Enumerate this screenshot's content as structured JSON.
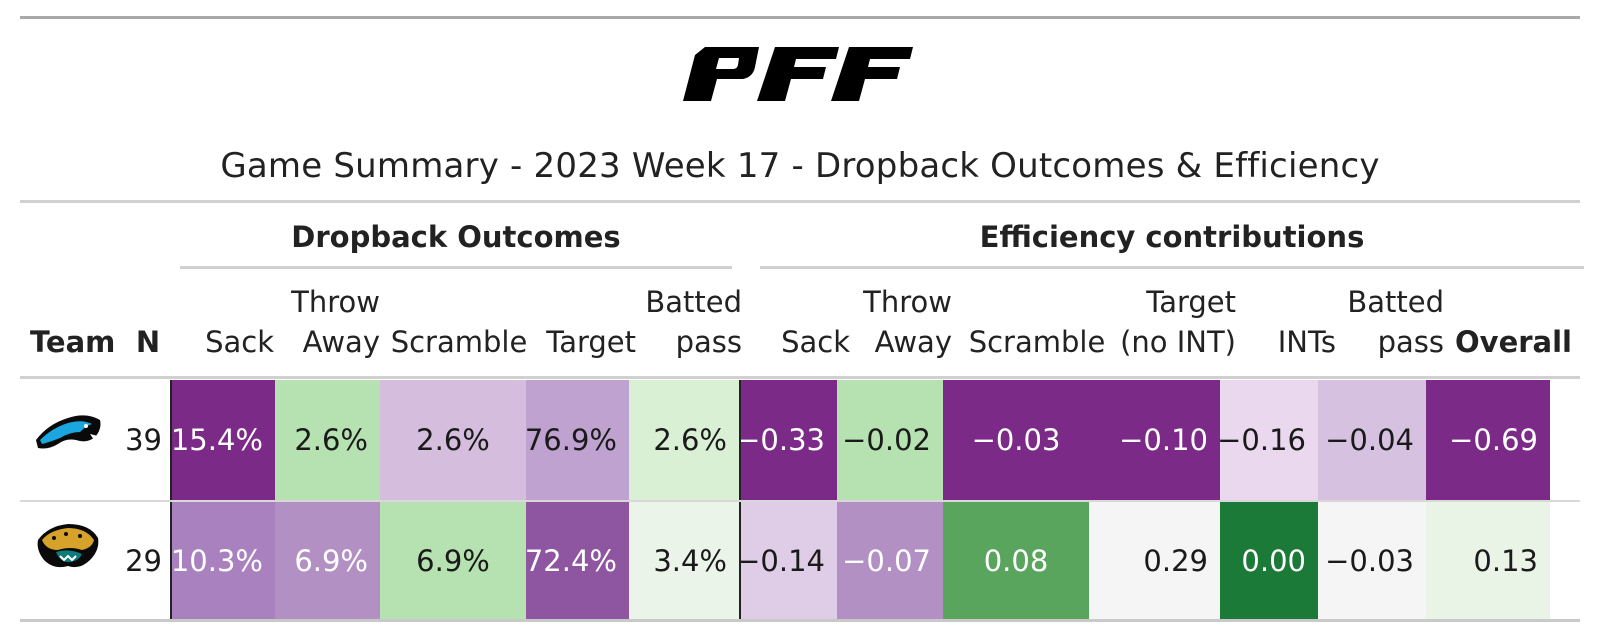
{
  "title": "Game Summary - 2023 Week 17 - Dropback Outcomes & Efficiency",
  "logo_text": "PFF",
  "spanners": {
    "outcomes": "Dropback Outcomes",
    "efficiency": "Efficiency contributions"
  },
  "columns": {
    "team": "Team",
    "n": "N",
    "outcomes": [
      {
        "l1": "",
        "l2": "Sack"
      },
      {
        "l1": "Throw",
        "l2": "Away"
      },
      {
        "l1": "",
        "l2": "Scramble"
      },
      {
        "l1": "",
        "l2": "Target"
      },
      {
        "l1": "Batted",
        "l2": "pass"
      }
    ],
    "efficiency": [
      {
        "l1": "",
        "l2": "Sack"
      },
      {
        "l1": "Throw",
        "l2": "Away"
      },
      {
        "l1": "",
        "l2": "Scramble"
      },
      {
        "l1": "Target",
        "l2": "(no INT)"
      },
      {
        "l1": "",
        "l2": "INTs"
      },
      {
        "l1": "Batted",
        "l2": "pass"
      },
      {
        "l1": "",
        "l2": "Overall"
      }
    ]
  },
  "rows": [
    {
      "team_logo": "carolina-panthers-logo",
      "n": "39",
      "outcomes": [
        {
          "v": "15.4%",
          "bg": "#7b2b87",
          "fg": "#ffffff"
        },
        {
          "v": "2.6%",
          "bg": "#b6e2b1",
          "fg": "#1a1a1a"
        },
        {
          "v": "2.6%",
          "bg": "#d5bddd",
          "fg": "#1a1a1a"
        },
        {
          "v": "76.9%",
          "bg": "#bfa2cf",
          "fg": "#1a1a1a"
        },
        {
          "v": "2.6%",
          "bg": "#d9f0d4",
          "fg": "#1a1a1a"
        }
      ],
      "efficiency": [
        {
          "v": "−0.33",
          "bg": "#7b2b87",
          "fg": "#ffffff"
        },
        {
          "v": "−0.02",
          "bg": "#b6e2b1",
          "fg": "#1a1a1a"
        },
        {
          "v": "−0.03",
          "bg": "#7b2b87",
          "fg": "#ffffff"
        },
        {
          "v": "−0.10",
          "bg": "#7b2b87",
          "fg": "#ffffff"
        },
        {
          "v": "−0.16",
          "bg": "#ead9ee",
          "fg": "#1a1a1a"
        },
        {
          "v": "−0.04",
          "bg": "#d7c1e0",
          "fg": "#1a1a1a"
        },
        {
          "v": "−0.69",
          "bg": "#7b2b87",
          "fg": "#ffffff"
        }
      ]
    },
    {
      "team_logo": "jacksonville-jaguars-logo",
      "n": "29",
      "outcomes": [
        {
          "v": "10.3%",
          "bg": "#a981be",
          "fg": "#ffffff"
        },
        {
          "v": "6.9%",
          "bg": "#b290c4",
          "fg": "#ffffff"
        },
        {
          "v": "6.9%",
          "bg": "#b6e2b1",
          "fg": "#1a1a1a"
        },
        {
          "v": "72.4%",
          "bg": "#8e55a0",
          "fg": "#ffffff"
        },
        {
          "v": "3.4%",
          "bg": "#ebf4e8",
          "fg": "#1a1a1a"
        }
      ],
      "efficiency": [
        {
          "v": "−0.14",
          "bg": "#dfcce6",
          "fg": "#1a1a1a"
        },
        {
          "v": "−0.07",
          "bg": "#b290c4",
          "fg": "#ffffff"
        },
        {
          "v": "0.08",
          "bg": "#5aa55d",
          "fg": "#ffffff"
        },
        {
          "v": "0.29",
          "bg": "#f5f5f5",
          "fg": "#1a1a1a"
        },
        {
          "v": "0.00",
          "bg": "#1b7a37",
          "fg": "#ffffff"
        },
        {
          "v": "−0.03",
          "bg": "#f5f5f5",
          "fg": "#1a1a1a"
        },
        {
          "v": "0.13",
          "bg": "#e9f4e6",
          "fg": "#1a1a1a"
        }
      ]
    }
  ]
}
